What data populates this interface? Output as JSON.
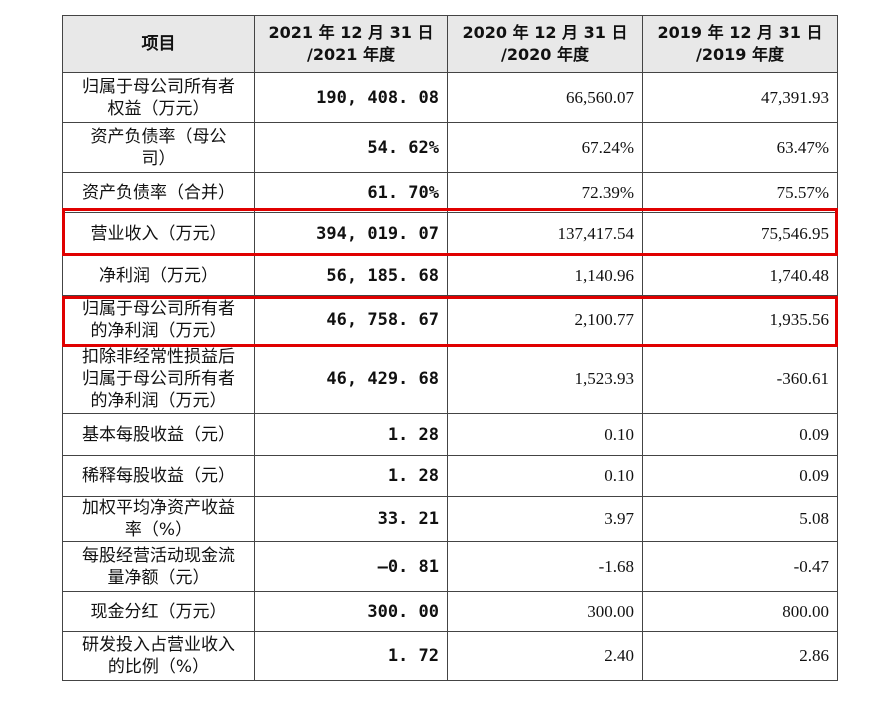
{
  "table": {
    "headers": {
      "item": "项目",
      "y2021_line1": "2021 年 12 月 31 日",
      "y2021_line2": "/2021 年度",
      "y2020_line1": "2020 年 12 月 31 日",
      "y2020_line2": "/2020 年度",
      "y2019_line1": "2019 年 12 月 31 日",
      "y2019_line2": "/2019 年度"
    },
    "rows": [
      {
        "label_1": "归属于母公司所有者",
        "label_2": "权益（万元）",
        "label_3": "",
        "y2021": "190, 408. 08",
        "y2020": "66,560.07",
        "y2019": "47,391.93"
      },
      {
        "label_1": "资产负债率（母公",
        "label_2": "司）",
        "label_3": "",
        "y2021": "54. 62%",
        "y2020": "67.24%",
        "y2019": "63.47%"
      },
      {
        "label_1": "资产负债率（合并）",
        "label_2": "",
        "label_3": "",
        "y2021": "61. 70%",
        "y2020": "72.39%",
        "y2019": "75.57%"
      },
      {
        "label_1": "营业收入（万元）",
        "label_2": "",
        "label_3": "",
        "y2021": "394, 019. 07",
        "y2020": "137,417.54",
        "y2019": "75,546.95"
      },
      {
        "label_1": "净利润（万元）",
        "label_2": "",
        "label_3": "",
        "y2021": "56, 185. 68",
        "y2020": "1,140.96",
        "y2019": "1,740.48"
      },
      {
        "label_1": "归属于母公司所有者",
        "label_2": "的净利润（万元）",
        "label_3": "",
        "y2021": "46, 758. 67",
        "y2020": "2,100.77",
        "y2019": "1,935.56"
      },
      {
        "label_1": "扣除非经常性损益后",
        "label_2": "归属于母公司所有者",
        "label_3": "的净利润（万元）",
        "y2021": "46, 429. 68",
        "y2020": "1,523.93",
        "y2019": "-360.61"
      },
      {
        "label_1": "基本每股收益（元）",
        "label_2": "",
        "label_3": "",
        "y2021": "1. 28",
        "y2020": "0.10",
        "y2019": "0.09"
      },
      {
        "label_1": "稀释每股收益（元）",
        "label_2": "",
        "label_3": "",
        "y2021": "1. 28",
        "y2020": "0.10",
        "y2019": "0.09"
      },
      {
        "label_1": "加权平均净资产收益",
        "label_2": "率（%）",
        "label_3": "",
        "y2021": "33. 21",
        "y2020": "3.97",
        "y2019": "5.08"
      },
      {
        "label_1": "每股经营活动现金流",
        "label_2": "量净额（元）",
        "label_3": "",
        "y2021": "–0. 81",
        "y2020": "-1.68",
        "y2019": "-0.47"
      },
      {
        "label_1": "现金分红（万元）",
        "label_2": "",
        "label_3": "",
        "y2021": "300. 00",
        "y2020": "300.00",
        "y2019": "800.00"
      },
      {
        "label_1": "研发投入占营业收入",
        "label_2": "的比例（%）",
        "label_3": "",
        "y2021": "1. 72",
        "y2020": "2.40",
        "y2019": "2.86"
      }
    ]
  },
  "highlight_color": "#e00000"
}
